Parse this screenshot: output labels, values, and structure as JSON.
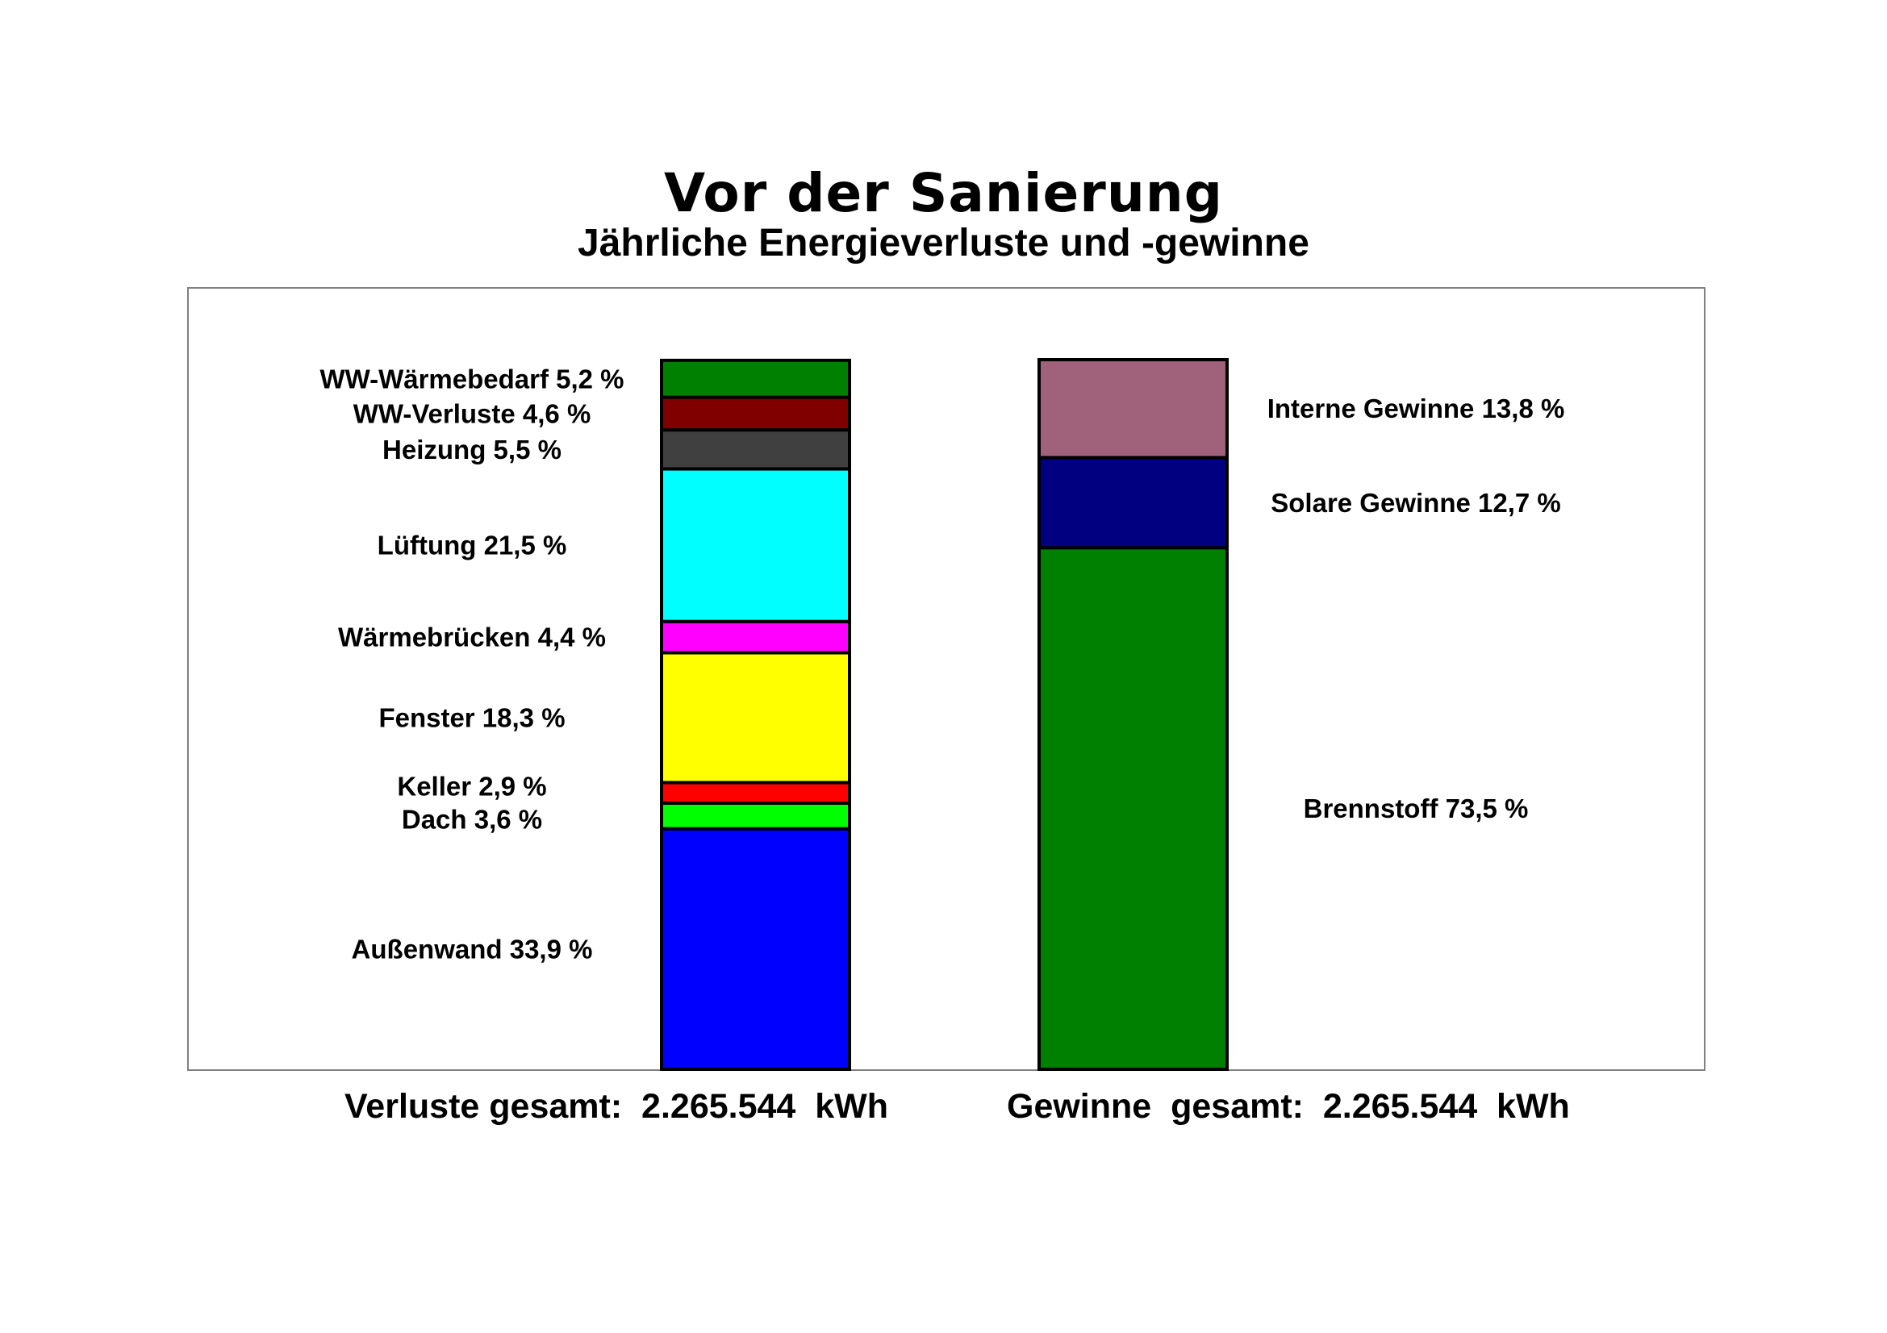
{
  "chart_data": {
    "type": "bar",
    "stacked": true,
    "title": "Vor der Sanierung",
    "subtitle": "Jährliche Energieverluste und -gewinne",
    "unit": "%",
    "ylim": [
      0,
      100
    ],
    "stacks": [
      {
        "segments": [
          {
            "label": "Außenwand  33,9 %",
            "value": 33.9,
            "color": "#0000FF"
          },
          {
            "label": "Dach  3,6 %",
            "value": 3.6,
            "color": "#00FF00"
          },
          {
            "label": "Keller  2,9 %",
            "value": 2.9,
            "color": "#FF0000"
          },
          {
            "label": "Fenster  18,3 %",
            "value": 18.3,
            "color": "#FFFF00"
          },
          {
            "label": "Wärmebrücken  4,4 %",
            "value": 4.4,
            "color": "#FF00FF"
          },
          {
            "label": "Lüftung  21,5 %",
            "value": 21.5,
            "color": "#00FFFF"
          },
          {
            "label": "Heizung  5,5 %",
            "value": 5.5,
            "color": "#404040"
          },
          {
            "label": "WW-Verluste  4,6 %",
            "value": 4.6,
            "color": "#800000"
          },
          {
            "label": "WW-Wärmebedarf  5,2 %",
            "value": 5.2,
            "color": "#008000"
          }
        ],
        "total_label": "Verluste gesamt:  2.265.544  kWh"
      },
      {
        "segments": [
          {
            "label": "Brennstoff  73,5 %",
            "value": 73.5,
            "color": "#008000"
          },
          {
            "label": "Solare Gewinne  12,7 %",
            "value": 12.7,
            "color": "#000080"
          },
          {
            "label": "Interne Gewinne  13,8 %",
            "value": 13.8,
            "color": "#A0627A"
          }
        ],
        "total_label": "Gewinne  gesamt:  2.265.544  kWh"
      }
    ]
  }
}
